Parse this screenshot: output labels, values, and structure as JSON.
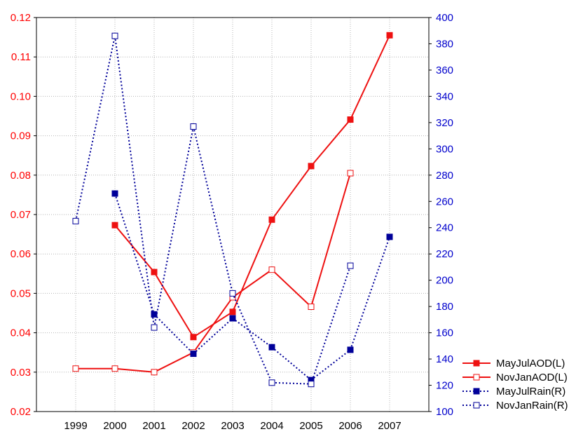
{
  "chart_data": {
    "type": "line",
    "title": "",
    "xlabel": "",
    "ylabel_left": "",
    "ylabel_right": "",
    "x": [
      "1999",
      "2000",
      "2001",
      "2002",
      "2003",
      "2004",
      "2005",
      "2006",
      "2007"
    ],
    "ylim_left": [
      0.02,
      0.12
    ],
    "ylim_right": [
      100,
      400
    ],
    "yticks_left": [
      "0.02",
      "0.03",
      "0.04",
      "0.05",
      "0.06",
      "0.07",
      "0.08",
      "0.09",
      "0.10",
      "0.11",
      "0.12"
    ],
    "yticks_right": [
      "100",
      "120",
      "140",
      "160",
      "180",
      "200",
      "220",
      "240",
      "260",
      "280",
      "300",
      "320",
      "340",
      "360",
      "380",
      "400"
    ],
    "grid": true,
    "legend_position": "bottom-right",
    "colors": {
      "left_axis": "#ff0000",
      "right_axis": "#0000cc",
      "red_series": "#ee1111",
      "blue_series": "#000099",
      "grid": "#b4b4b4"
    },
    "series": [
      {
        "name": "MayJulAOD(L)",
        "axis": "left",
        "style": "solid",
        "marker": "filled-square",
        "color": "#ee1111",
        "values": [
          null,
          0.0673,
          0.0554,
          0.0389,
          0.0453,
          0.0687,
          0.0823,
          0.0941,
          0.1155
        ]
      },
      {
        "name": "NovJanAOD(L)",
        "axis": "left",
        "style": "solid",
        "marker": "open-square",
        "color": "#ee1111",
        "values": [
          0.0309,
          0.0309,
          0.03,
          0.035,
          0.049,
          0.056,
          0.0466,
          0.0805,
          null
        ]
      },
      {
        "name": "MayJulRain(R)",
        "axis": "right",
        "style": "dotted",
        "marker": "filled-square",
        "color": "#000099",
        "values": [
          null,
          266,
          174,
          144,
          171,
          149,
          124,
          147,
          233
        ]
      },
      {
        "name": "NovJanRain(R)",
        "axis": "right",
        "style": "dotted",
        "marker": "open-square",
        "color": "#000099",
        "values": [
          245,
          386,
          164,
          317,
          190,
          122,
          121,
          211,
          null
        ]
      }
    ]
  }
}
